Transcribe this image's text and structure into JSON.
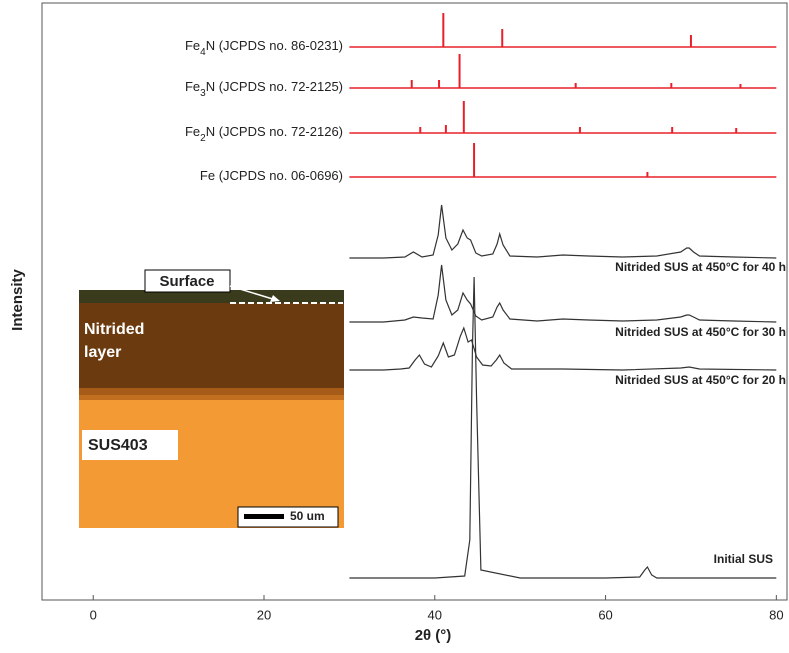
{
  "chart_data": {
    "type": "line",
    "x_label": "2θ (°)",
    "y_label": "Intensity",
    "xlim": [
      -6,
      81.6
    ],
    "xticks": [
      0,
      20,
      40,
      60,
      80
    ],
    "ylim": [
      0,
      597
    ],
    "series": [
      {
        "type": "stem",
        "name_parts": [
          "Fe",
          "4",
          "N (JCPDS no. 86-0231)"
        ],
        "color": "#e8202a",
        "baseline": 553,
        "x": [
          41,
          47.9,
          70
        ],
        "values": [
          587,
          571,
          565
        ]
      },
      {
        "type": "stem",
        "name_parts": [
          "Fe",
          "3",
          "N (JCPDS no. 72-2125)"
        ],
        "color": "#e8202a",
        "baseline": 512,
        "x": [
          37.3,
          40.5,
          42.9,
          56.5,
          67.7,
          75.8
        ],
        "values": [
          520,
          520,
          546,
          517,
          517,
          516
        ]
      },
      {
        "type": "stem",
        "name_parts": [
          "Fe",
          "2",
          "N (JCPDS no. 72-2126)"
        ],
        "color": "#e8202a",
        "baseline": 467,
        "x": [
          38.3,
          41.3,
          43.4,
          57,
          67.8,
          75.3
        ],
        "values": [
          473,
          475,
          499,
          473,
          473,
          472
        ]
      },
      {
        "type": "stem",
        "name_parts": [
          "Fe (JCPDS no. 06-0696)"
        ],
        "color": "#e8202a",
        "baseline": 423,
        "x": [
          44.6,
          64.9
        ],
        "values": [
          457,
          428
        ]
      },
      {
        "type": "line",
        "name": "Nitrided SUS at 450°C for 40 h",
        "color": "#333333",
        "x": [
          30,
          34,
          36.5,
          37.5,
          38.5,
          39.8,
          40.4,
          40.8,
          41.3,
          42,
          42.7,
          43.3,
          43.8,
          44.2,
          44.8,
          45.5,
          46.8,
          47.3,
          47.6,
          48,
          48.8,
          52,
          55,
          58,
          62,
          66,
          68.8,
          69.5,
          69.8,
          70.3,
          71,
          75,
          80
        ],
        "values": [
          342,
          342,
          343,
          348,
          343,
          345,
          365,
          395,
          362,
          350,
          356,
          370,
          362,
          360,
          347,
          344,
          346,
          356,
          366,
          355,
          344,
          343,
          345,
          344,
          343,
          344,
          348,
          352,
          352,
          348,
          344,
          343,
          342
        ]
      },
      {
        "type": "line",
        "name": "Nitrided SUS at 450°C for 30 h",
        "color": "#333333",
        "x": [
          30,
          34,
          36.5,
          37.5,
          38.5,
          39.8,
          40.4,
          40.8,
          41.3,
          42,
          42.7,
          43.3,
          43.8,
          44.2,
          44.8,
          45.5,
          46.8,
          47.3,
          47.6,
          48,
          48.8,
          52,
          55,
          58,
          62,
          66,
          68.8,
          69.5,
          69.8,
          70.3,
          71,
          75,
          80
        ],
        "values": [
          278,
          278,
          280,
          283,
          282,
          281,
          305,
          335,
          300,
          285,
          290,
          307,
          300,
          296,
          284,
          280,
          283,
          293,
          297,
          290,
          281,
          279,
          281,
          280,
          279,
          280,
          283,
          285,
          285,
          283,
          280,
          279,
          278
        ]
      },
      {
        "type": "line",
        "name": "Nitrided SUS at 450°C for 20 h",
        "color": "#333333",
        "x": [
          30,
          34,
          36,
          37,
          37.7,
          38.2,
          38.8,
          39.6,
          40.4,
          41,
          41.6,
          42.3,
          43,
          43.4,
          43.9,
          44.3,
          44.9,
          45.6,
          46.6,
          47.2,
          47.6,
          48.1,
          49,
          55,
          62,
          68.8,
          69.8,
          71,
          80
        ],
        "values": [
          230,
          230,
          231,
          232,
          240,
          245,
          236,
          233,
          244,
          257,
          243,
          245,
          264,
          272,
          258,
          260,
          243,
          235,
          234,
          240,
          245,
          237,
          231,
          231,
          230,
          232,
          233,
          231,
          230
        ]
      },
      {
        "type": "line",
        "name": "Initial SUS",
        "color": "#333333",
        "x": [
          30,
          40,
          43.5,
          44.1,
          44.4,
          44.6,
          44.9,
          45.4,
          50,
          60,
          64,
          64.6,
          64.9,
          65.4,
          66,
          80
        ],
        "values": [
          22,
          22,
          24,
          60,
          250,
          323,
          200,
          30,
          22,
          22,
          23,
          30,
          33,
          25,
          22,
          22
        ]
      }
    ]
  },
  "inset": {
    "surface": "Surface",
    "layer_line1": "Nitrided",
    "layer_line2": "layer",
    "substrate": "SUS403",
    "scale_bar": "50 um"
  }
}
